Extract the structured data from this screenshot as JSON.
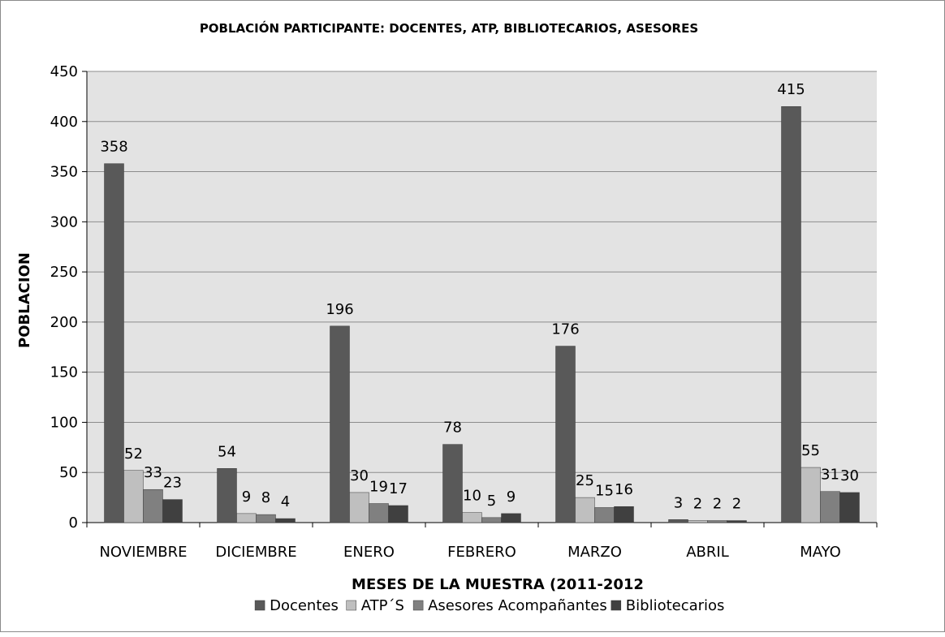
{
  "chart_data": {
    "type": "bar",
    "title": "POBLACIÓN PARTICIPANTE: DOCENTES, ATP, BIBLIOTECARIOS, ASESORES",
    "xlabel": "MESES DE LA MUESTRA (2011-2012",
    "ylabel": "POBLACION",
    "categories": [
      "NOVIEMBRE",
      "DICIEMBRE",
      "ENERO",
      "FEBRERO",
      "MARZO",
      "ABRIL",
      "MAYO"
    ],
    "series": [
      {
        "name": "Docentes",
        "values": [
          358,
          54,
          196,
          78,
          176,
          3,
          415
        ],
        "color": "#595959"
      },
      {
        "name": "ATP´S",
        "values": [
          52,
          9,
          30,
          10,
          25,
          2,
          55
        ],
        "color": "#bfbfbf"
      },
      {
        "name": "Asesores Acompañantes",
        "values": [
          33,
          8,
          19,
          5,
          15,
          2,
          31
        ],
        "color": "#808080"
      },
      {
        "name": "Bibliotecarios",
        "values": [
          23,
          4,
          17,
          9,
          16,
          2,
          30
        ],
        "color": "#404040"
      }
    ],
    "ylim": [
      0,
      450
    ],
    "yticks": [
      0,
      50,
      100,
      150,
      200,
      250,
      300,
      350,
      400,
      450
    ],
    "grid": true,
    "legend": "bottom",
    "plot_background": "#e3e3e3"
  }
}
